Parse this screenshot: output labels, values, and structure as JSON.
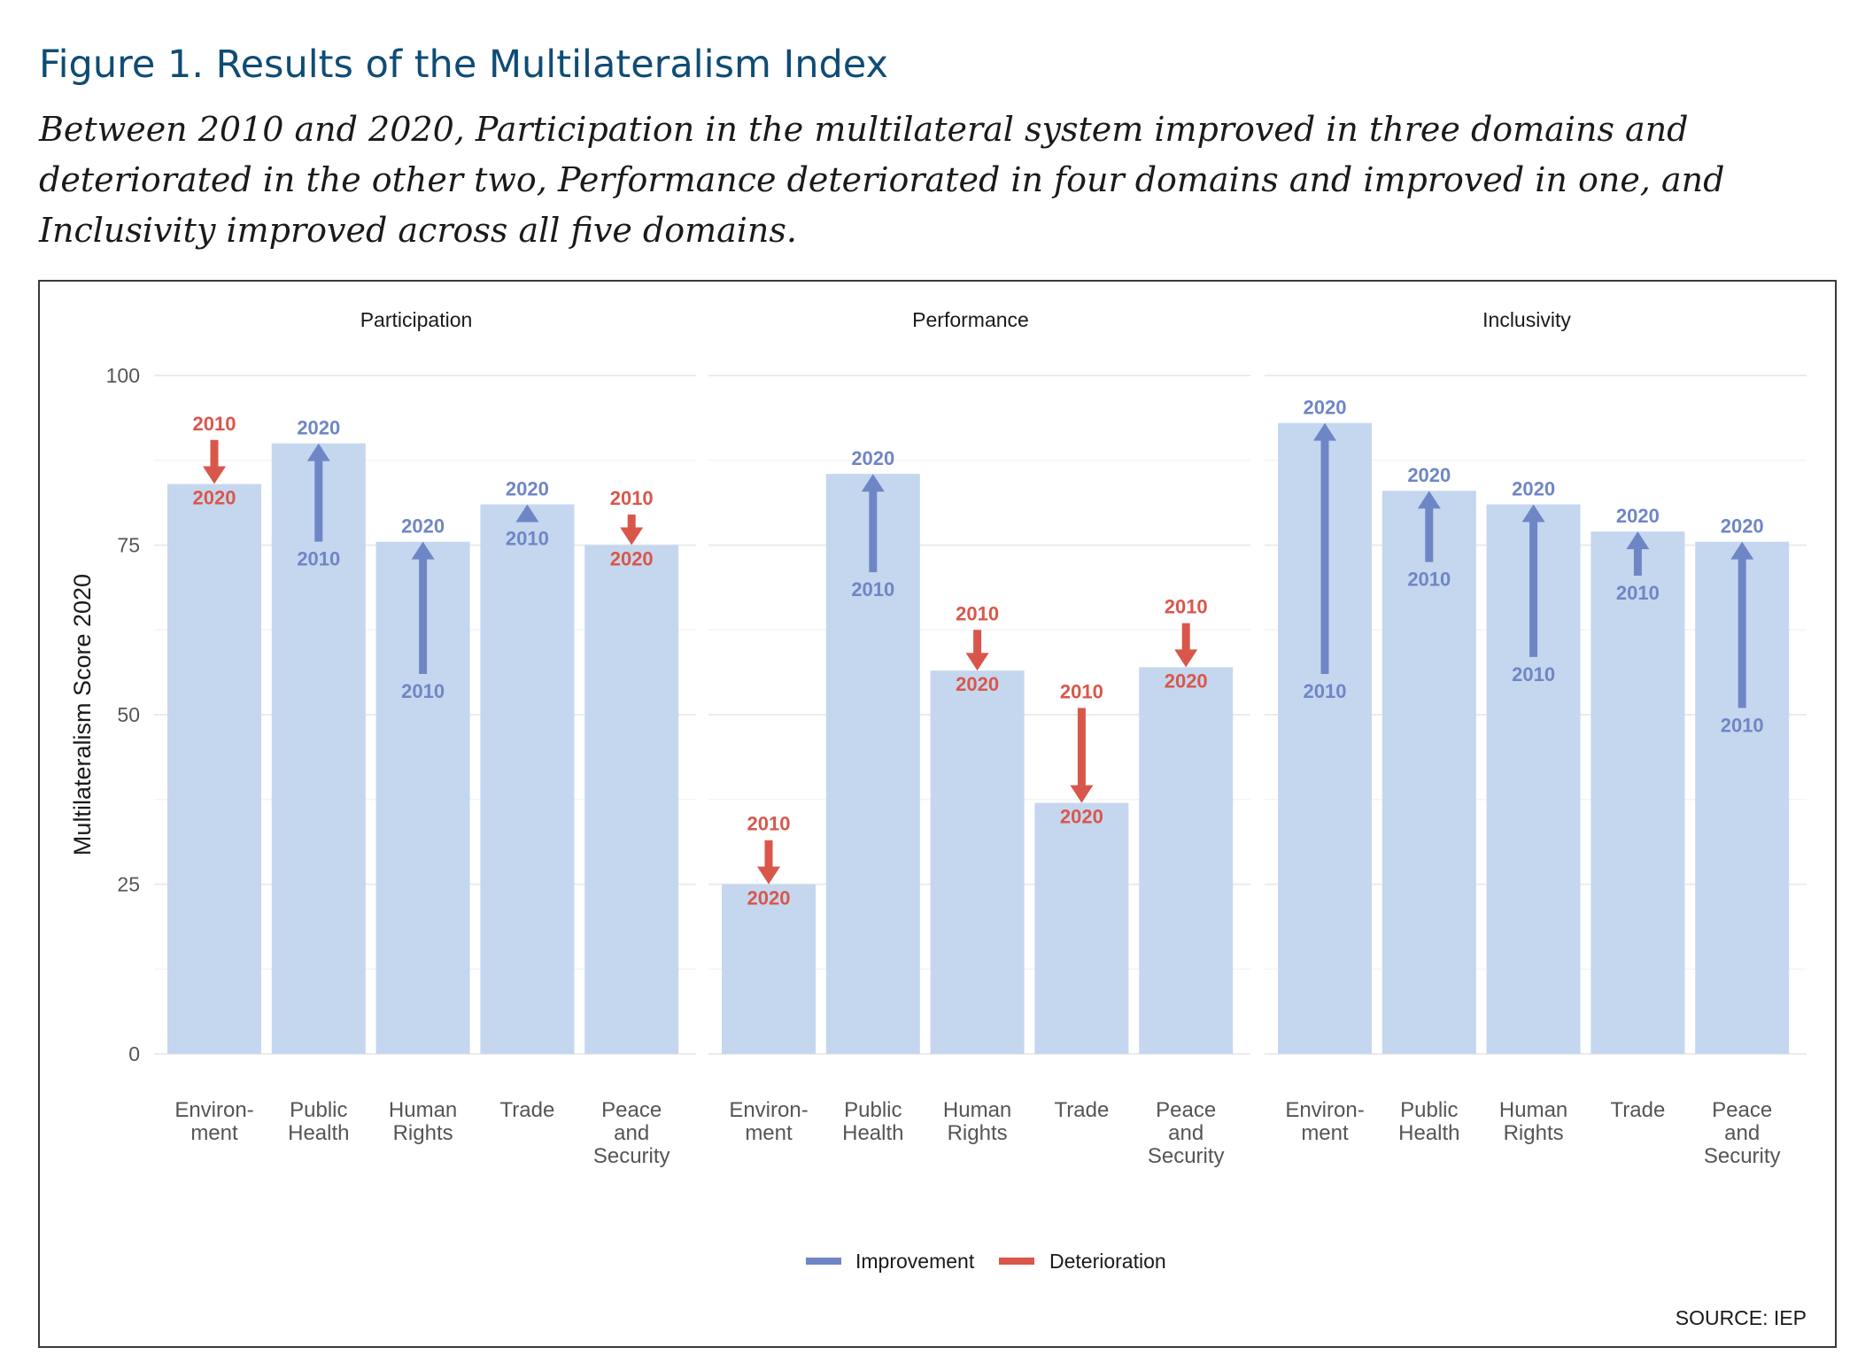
{
  "header": {
    "title": "Figure 1. Results of the Multilateralism Index",
    "subtitle": "Between 2010 and 2020, Participation in the multilateral system improved in three domains and deteriorated in the other two, Performance deteriorated in four domains and improved in one, and Inclusivity improved across all five domains."
  },
  "chart_data": {
    "type": "bar",
    "ylabel": "Multilateralism Score 2020",
    "ylim": [
      0,
      100
    ],
    "yticks": [
      0,
      25,
      50,
      75,
      100
    ],
    "categories": [
      [
        "Environ-",
        "ment"
      ],
      [
        "Public",
        "Health"
      ],
      [
        "Human",
        "Rights"
      ],
      [
        "Trade"
      ],
      [
        "Peace",
        "and",
        "Security"
      ]
    ],
    "panels": [
      {
        "name": "Participation",
        "values_2010": [
          90.5,
          75.5,
          56,
          78.5,
          79.5
        ],
        "values_2020": [
          84,
          90,
          75.5,
          81,
          75
        ]
      },
      {
        "name": "Performance",
        "values_2010": [
          31.5,
          71,
          62.5,
          51,
          63.5
        ],
        "values_2020": [
          25,
          85.5,
          56.5,
          37,
          57
        ]
      },
      {
        "name": "Inclusivity",
        "values_2010": [
          56,
          72.5,
          58.5,
          70.5,
          51
        ],
        "values_2020": [
          93,
          83,
          81,
          77,
          75.5
        ]
      }
    ],
    "year_labels": {
      "start": "2010",
      "end": "2020"
    },
    "legend": {
      "position": "bottom",
      "items": [
        {
          "label": "Improvement",
          "color": "#6f86c6"
        },
        {
          "label": "Deterioration",
          "color": "#d9574a"
        }
      ]
    },
    "grid": true,
    "bar_color": "#c5d7ee",
    "source": "SOURCE: IEP"
  }
}
